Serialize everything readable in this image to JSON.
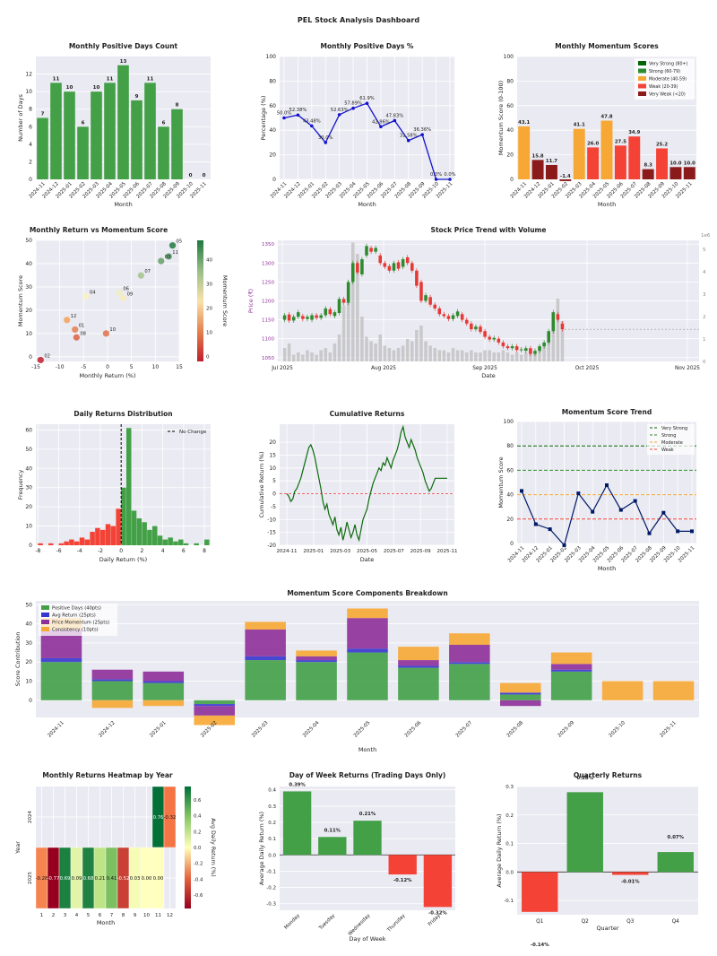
{
  "dashboard_title": "PEL Stock Analysis Dashboard",
  "colors": {
    "plot_bg": "#eaeaf2",
    "green": "#2e8b2e",
    "green_bar": "#43a047",
    "red_bar": "#f44336",
    "orange": "#f7a733",
    "dark_red": "#8b1a1a",
    "blue_line": "#1414cc",
    "navy": "#001a66",
    "purple": "#8e2f99",
    "volume": "#bdbdbd"
  },
  "chart_data": [
    {
      "id": "positive_days_count",
      "type": "bar",
      "title": "Monthly Positive Days Count",
      "xlabel": "Month",
      "ylabel": "Number of Days",
      "categories": [
        "2024-11",
        "2024-12",
        "2025-01",
        "2025-02",
        "2025-03",
        "2025-04",
        "2025-05",
        "2025-06",
        "2025-07",
        "2025-08",
        "2025-09",
        "2025-10",
        "2025-11"
      ],
      "values": [
        7,
        11,
        10,
        6,
        10,
        11,
        13,
        9,
        11,
        6,
        8,
        0,
        0
      ],
      "labels": [
        "7",
        "11",
        "10",
        "6",
        "10",
        "11",
        "13",
        "9",
        "11",
        "6",
        "8",
        "0",
        "0"
      ],
      "ylim": [
        0,
        14
      ],
      "yticks": [
        0,
        2,
        4,
        6,
        8,
        10,
        12
      ]
    },
    {
      "id": "positive_days_pct",
      "type": "line",
      "title": "Monthly Positive Days %",
      "xlabel": "Month",
      "ylabel": "Percentage (%)",
      "categories": [
        "2024-11",
        "2024-12",
        "2025-01",
        "2025-02",
        "2025-03",
        "2025-04",
        "2025-05",
        "2025-06",
        "2025-07",
        "2025-08",
        "2025-09",
        "2025-10",
        "2025-11"
      ],
      "values": [
        50.0,
        52.38,
        43.48,
        30.0,
        52.63,
        57.89,
        61.9,
        42.86,
        47.83,
        31.58,
        36.36,
        0.0,
        0.0
      ],
      "labels": [
        "50.0%",
        "52.38%",
        "43.48%",
        "30.0%",
        "52.63%",
        "57.89%",
        "61.9%",
        "42.86%",
        "47.83%",
        "31.58%",
        "36.36%",
        "0.0%",
        "0.0%"
      ],
      "ylim": [
        0,
        100
      ],
      "yticks": [
        0,
        20,
        40,
        60,
        80,
        100
      ]
    },
    {
      "id": "momentum_scores",
      "type": "bar",
      "title": "Monthly Momentum Scores",
      "xlabel": "Month",
      "ylabel": "Momentum Score (0-100)",
      "categories": [
        "2024-11",
        "2024-12",
        "2025-01",
        "2025-02",
        "2025-03",
        "2025-04",
        "2025-05",
        "2025-06",
        "2025-07",
        "2025-08",
        "2025-09",
        "2025-10",
        "2025-11"
      ],
      "values": [
        43.1,
        15.8,
        11.7,
        -1.4,
        41.1,
        26.0,
        47.8,
        27.5,
        34.9,
        8.3,
        25.2,
        10.0,
        10.0
      ],
      "labels": [
        "43.1",
        "15.8",
        "11.7",
        "-1.4",
        "41.1",
        "26.0",
        "47.8",
        "27.5",
        "34.9",
        "8.3",
        "25.2",
        "10.0",
        "10.0"
      ],
      "bar_colors": [
        "#f7a733",
        "#8b1a1a",
        "#8b1a1a",
        "#8b1a1a",
        "#f7a733",
        "#f44336",
        "#f7a733",
        "#f44336",
        "#f44336",
        "#8b1a1a",
        "#f44336",
        "#8b1a1a",
        "#8b1a1a"
      ],
      "ylim": [
        0,
        100
      ],
      "yticks": [
        0,
        20,
        40,
        60,
        80,
        100
      ],
      "legend": [
        {
          "label": "Very Strong (80+)",
          "color": "#006400"
        },
        {
          "label": "Strong (60-79)",
          "color": "#2e8b2e"
        },
        {
          "label": "Moderate (40-59)",
          "color": "#f7a733"
        },
        {
          "label": "Weak (20-39)",
          "color": "#f44336"
        },
        {
          "label": "Very Weak (<20)",
          "color": "#8b1a1a"
        }
      ]
    },
    {
      "id": "return_vs_momentum",
      "type": "scatter",
      "title": "Monthly Return vs Momentum Score",
      "xlabel": "Monthly Return (%)",
      "ylabel": "Momentum Score",
      "colorbar_label": "Momentum Score",
      "colorbar_ticks": [
        0,
        10,
        20,
        30,
        40
      ],
      "points": [
        {
          "label": "05",
          "x": 13.6,
          "y": 47.8
        },
        {
          "label": "11",
          "x": 12.8,
          "y": 43.1
        },
        {
          "label": "03",
          "x": 11.2,
          "y": 41.1
        },
        {
          "label": "07",
          "x": 7.0,
          "y": 34.9
        },
        {
          "label": "06",
          "x": 2.5,
          "y": 27.5
        },
        {
          "label": "09",
          "x": 3.3,
          "y": 25.2
        },
        {
          "label": "04",
          "x": -4.5,
          "y": 26.0
        },
        {
          "label": "12",
          "x": -8.5,
          "y": 15.8
        },
        {
          "label": "01",
          "x": -6.8,
          "y": 11.7
        },
        {
          "label": "10",
          "x": -0.3,
          "y": 10.0
        },
        {
          "label": "08",
          "x": -6.5,
          "y": 8.3
        },
        {
          "label": "02",
          "x": -14.0,
          "y": -1.4
        }
      ],
      "xlim": [
        -15,
        15
      ],
      "ylim": [
        -2,
        50
      ],
      "xticks": [
        -15,
        -10,
        -5,
        0,
        5,
        10,
        15
      ],
      "yticks": [
        0,
        10,
        20,
        30,
        40,
        50
      ]
    },
    {
      "id": "price_volume",
      "type": "candlestick",
      "title": "Stock Price Trend with Volume",
      "xlabel": "Date",
      "ylabel": "Price (₹)",
      "ylabel_right": "Volume",
      "volume_scale": "1e6",
      "xtick_labels": [
        "Jul 2025",
        "Aug 2025",
        "Sep 2025",
        "Oct 2025",
        "Nov 2025"
      ],
      "yticks": [
        1050,
        1100,
        1150,
        1200,
        1250,
        1300,
        1350
      ],
      "volume_ticks": [
        0,
        1,
        2,
        3,
        4,
        5
      ],
      "ylim": [
        1040,
        1360
      ],
      "volume_lim": [
        0,
        5.4
      ],
      "candles": [
        [
          1150,
          1162
        ],
        [
          1164,
          1148
        ],
        [
          1148,
          1158
        ],
        [
          1158,
          1170
        ],
        [
          1160,
          1152
        ],
        [
          1152,
          1158
        ],
        [
          1150,
          1162
        ],
        [
          1162,
          1155
        ],
        [
          1155,
          1162
        ],
        [
          1162,
          1180
        ],
        [
          1178,
          1165
        ],
        [
          1160,
          1170
        ],
        [
          1168,
          1205
        ],
        [
          1205,
          1195
        ],
        [
          1195,
          1250
        ],
        [
          1250,
          1300
        ],
        [
          1300,
          1275
        ],
        [
          1270,
          1310
        ],
        [
          1320,
          1345
        ],
        [
          1340,
          1330
        ],
        [
          1330,
          1340
        ],
        [
          1320,
          1300
        ],
        [
          1300,
          1290
        ],
        [
          1292,
          1280
        ],
        [
          1280,
          1300
        ],
        [
          1302,
          1285
        ],
        [
          1290,
          1310
        ],
        [
          1315,
          1300
        ],
        [
          1300,
          1280
        ],
        [
          1280,
          1240
        ],
        [
          1250,
          1200
        ],
        [
          1200,
          1215
        ],
        [
          1210,
          1190
        ],
        [
          1190,
          1180
        ],
        [
          1180,
          1165
        ],
        [
          1165,
          1160
        ],
        [
          1160,
          1152
        ],
        [
          1152,
          1162
        ],
        [
          1160,
          1172
        ],
        [
          1165,
          1150
        ],
        [
          1150,
          1140
        ],
        [
          1140,
          1125
        ],
        [
          1125,
          1132
        ],
        [
          1132,
          1118
        ],
        [
          1120,
          1105
        ],
        [
          1105,
          1098
        ],
        [
          1098,
          1102
        ],
        [
          1100,
          1090
        ],
        [
          1090,
          1080
        ],
        [
          1080,
          1075
        ],
        [
          1075,
          1080
        ],
        [
          1080,
          1070
        ],
        [
          1070,
          1072
        ],
        [
          1068,
          1075
        ],
        [
          1075,
          1060
        ],
        [
          1060,
          1068
        ],
        [
          1068,
          1080
        ],
        [
          1080,
          1090
        ],
        [
          1090,
          1120
        ],
        [
          1120,
          1170
        ],
        [
          1165,
          1150
        ],
        [
          1140,
          1125
        ]
      ],
      "volumes": [
        0.6,
        0.8,
        0.3,
        0.4,
        0.3,
        0.5,
        0.4,
        0.3,
        0.5,
        0.6,
        0.4,
        0.8,
        1.2,
        2.5,
        3.2,
        5.3,
        4.8,
        2.0,
        1.1,
        0.9,
        0.8,
        1.2,
        0.7,
        0.6,
        0.5,
        0.6,
        0.7,
        1.0,
        0.9,
        1.4,
        1.6,
        0.9,
        0.7,
        0.6,
        0.5,
        0.5,
        0.4,
        0.6,
        0.5,
        0.5,
        0.4,
        0.5,
        0.4,
        0.4,
        0.5,
        0.5,
        0.4,
        0.4,
        0.5,
        0.4,
        0.3,
        0.4,
        0.3,
        0.4,
        0.5,
        0.4,
        0.6,
        0.8,
        1.2,
        1.6,
        2.8,
        1.8
      ],
      "last_price": 1125
    },
    {
      "id": "daily_returns_dist",
      "type": "histogram",
      "title": "Daily Returns Distribution",
      "xlabel": "Daily Return (%)",
      "ylabel": "Frequency",
      "legend": "No Change",
      "bin_start": -8.0,
      "bin_width": 0.5,
      "counts": [
        1,
        0,
        1,
        0,
        1,
        2,
        3,
        2,
        4,
        3,
        7,
        9,
        8,
        11,
        10,
        19,
        30,
        61,
        18,
        14,
        12,
        8,
        10,
        5,
        3,
        4,
        2,
        3,
        1,
        0,
        1,
        0,
        3
      ],
      "xticks": [
        -8,
        -6,
        -4,
        -2,
        0,
        2,
        4,
        6,
        8
      ],
      "yticks": [
        0,
        10,
        20,
        30,
        40,
        50,
        60
      ],
      "xlim": [
        -8.2,
        8.6
      ],
      "ylim": [
        0,
        63
      ]
    },
    {
      "id": "cumulative_returns",
      "type": "line",
      "title": "Cumulative Returns",
      "xlabel": "Date",
      "ylabel": "Cumulative Return (%)",
      "xtick_labels": [
        "2024-11",
        "2025-01",
        "2025-03",
        "2025-05",
        "2025-07",
        "2025-09",
        "2025-11"
      ],
      "yticks": [
        -20,
        -15,
        -10,
        -5,
        0,
        5,
        10,
        15,
        20
      ],
      "ylim": [
        -20,
        27
      ],
      "values": [
        0,
        -1,
        -3,
        -2,
        1,
        2,
        4,
        6,
        9,
        12,
        15,
        18,
        19,
        17,
        14,
        10,
        6,
        2,
        -3,
        -6,
        -4,
        -8,
        -10,
        -12,
        -9,
        -14,
        -16,
        -13,
        -18,
        -15,
        -11,
        -14,
        -17,
        -15,
        -12,
        -16,
        -18,
        -14,
        -10,
        -8,
        -6,
        -2,
        1,
        4,
        6,
        8,
        10,
        9,
        12,
        11,
        14,
        12,
        10,
        13,
        15,
        17,
        20,
        24,
        26,
        22,
        20,
        18,
        21,
        19,
        17,
        14,
        12,
        10,
        8,
        5,
        3,
        1,
        2,
        4,
        6,
        6,
        6,
        6,
        6,
        6,
        6
      ]
    },
    {
      "id": "momentum_trend",
      "type": "line",
      "title": "Momentum Score Trend",
      "xlabel": "Month",
      "ylabel": "Momentum Score",
      "categories": [
        "2024-11",
        "2024-12",
        "2025-01",
        "2025-02",
        "2025-03",
        "2025-04",
        "2025-05",
        "2025-06",
        "2025-07",
        "2025-08",
        "2025-09",
        "2025-10",
        "2025-11"
      ],
      "values": [
        43.1,
        15.8,
        11.7,
        -1.4,
        41.1,
        26.0,
        47.8,
        27.5,
        34.9,
        8.3,
        25.2,
        10.0,
        10.0
      ],
      "ylim": [
        0,
        100
      ],
      "yticks": [
        0,
        20,
        40,
        60,
        80,
        100
      ],
      "thresholds": [
        {
          "label": "Very Strong",
          "value": 80,
          "color": "#006400"
        },
        {
          "label": "Strong",
          "value": 60,
          "color": "#2e8b2e"
        },
        {
          "label": "Moderate",
          "value": 40,
          "color": "#f7a733"
        },
        {
          "label": "Weak",
          "value": 20,
          "color": "#f44336"
        }
      ]
    },
    {
      "id": "score_components",
      "type": "stacked_bar",
      "title": "Momentum Score Components Breakdown",
      "xlabel": "Month",
      "ylabel": "Score Contribution",
      "categories": [
        "2024-11",
        "2024-12",
        "2025-01",
        "2025-02",
        "2025-03",
        "2025-04",
        "2025-05",
        "2025-06",
        "2025-07",
        "2025-08",
        "2025-09",
        "2025-10",
        "2025-11"
      ],
      "series": [
        {
          "name": "Positive Days (40pts)",
          "color": "#43a047",
          "values": [
            20,
            10,
            9,
            -2,
            21,
            20,
            25,
            17,
            19,
            3,
            15,
            0,
            0
          ]
        },
        {
          "name": "Avg Return (25pts)",
          "color": "#3535d0",
          "values": [
            2,
            1,
            1,
            -1,
            2,
            1,
            2,
            1,
            1,
            1,
            1,
            0,
            0
          ]
        },
        {
          "name": "Price Momentum (25pts)",
          "color": "#8e2f99",
          "values": [
            15,
            5,
            5,
            -5,
            14,
            2,
            16,
            3,
            9,
            -3,
            3,
            0,
            0
          ]
        },
        {
          "name": "Consistency (10pts)",
          "color": "#f7a733",
          "values": [
            6,
            -4,
            -3,
            -5,
            4,
            3,
            5,
            7,
            6,
            5,
            6,
            10,
            10
          ]
        }
      ],
      "yticks": [
        0,
        10,
        20,
        30,
        40,
        50
      ],
      "ylim": [
        -9,
        52
      ]
    },
    {
      "id": "returns_heatmap",
      "type": "heatmap",
      "title": "Monthly Returns Heatmap by Year",
      "xlabel": "Month",
      "ylabel": "Year",
      "colorbar_label": "Avg Daily Return (%)",
      "colorbar_ticks": [
        -0.6,
        -0.4,
        -0.2,
        0.0,
        0.2,
        0.4,
        0.6
      ],
      "rows": [
        "2024",
        "2025"
      ],
      "cols": [
        "1",
        "2",
        "3",
        "4",
        "5",
        "6",
        "7",
        "8",
        "9",
        "10",
        "11",
        "12"
      ],
      "values": [
        [
          null,
          null,
          null,
          null,
          null,
          null,
          null,
          null,
          null,
          null,
          0.76,
          -0.32
        ],
        [
          -0.28,
          -0.77,
          0.69,
          0.09,
          0.68,
          0.21,
          0.41,
          -0.52,
          0.03,
          0.0,
          0.0,
          null
        ]
      ],
      "labels": [
        [
          "",
          "",
          "",
          "",
          "",
          "",
          "",
          "",
          "",
          "",
          "0.76",
          "-0.32"
        ],
        [
          "-0.28",
          "-0.77",
          "0.69",
          "0.09",
          "0.68",
          "0.21",
          "0.41",
          "-0.52",
          "0.03",
          "0.00",
          "0.00",
          ""
        ]
      ]
    },
    {
      "id": "day_of_week",
      "type": "bar",
      "title": "Day of Week Returns (Trading Days Only)",
      "xlabel": "Day of Week",
      "ylabel": "Average Daily Return (%)",
      "categories": [
        "Monday",
        "Tuesday",
        "Wednesday",
        "Thursday",
        "Friday"
      ],
      "values": [
        0.39,
        0.11,
        0.21,
        -0.12,
        -0.32
      ],
      "labels": [
        "0.39%",
        "0.11%",
        "0.21%",
        "-0.12%",
        "-0.32%"
      ],
      "yticks": [
        -0.3,
        -0.2,
        -0.1,
        0.0,
        0.1,
        0.2,
        0.3,
        0.4
      ],
      "ylim": [
        -0.34,
        0.42
      ]
    },
    {
      "id": "quarterly_returns",
      "type": "bar",
      "title": "Quarterly Returns",
      "xlabel": "Quarter",
      "ylabel": "Average Daily Return (%)",
      "categories": [
        "Q1",
        "Q2",
        "Q3",
        "Q4"
      ],
      "values": [
        -0.14,
        0.28,
        -0.01,
        0.07
      ],
      "labels": [
        "-0.14%",
        "0.28%",
        "-0.01%",
        "0.07%"
      ],
      "yticks": [
        -0.1,
        0.0,
        0.1,
        0.2,
        0.3
      ],
      "ylim": [
        -0.15,
        0.3
      ]
    }
  ]
}
